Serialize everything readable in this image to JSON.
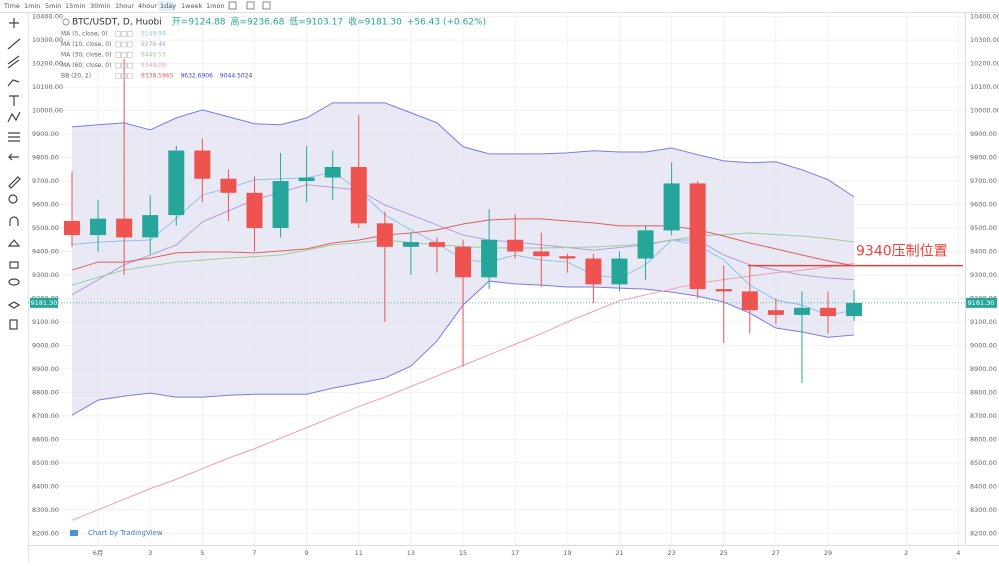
{
  "toolbar": {
    "intervals": [
      "Time",
      "1min",
      "5min",
      "15min",
      "30min",
      "1hour",
      "4hour",
      "1day",
      "1week",
      "1mon"
    ],
    "active": 7
  },
  "chart_data": {
    "type": "candlestick",
    "title": "BTC/USDT, D, Huobi",
    "ohlc_labels": [
      "开=",
      "高=",
      "低=",
      "收="
    ],
    "price_label": "9181.30",
    "change": "+56.43 (+0.62%)",
    "watermark": "Chart by TradingView",
    "categories": [
      null,
      "6月",
      null,
      "3",
      null,
      "5",
      null,
      "7",
      null,
      "9",
      null,
      "11",
      null,
      "13",
      null,
      "15",
      null,
      "17",
      null,
      "19",
      null,
      "21",
      null,
      "23",
      null,
      "25",
      null,
      "27",
      null,
      "29",
      null,
      null,
      "2",
      null,
      "4"
    ],
    "open": [
      9530,
      9470,
      9540,
      9460,
      9555,
      9830,
      9710,
      9650,
      9500,
      9700,
      9715,
      9760,
      9520,
      9420,
      9440,
      9420,
      9290,
      9450,
      9400,
      9380,
      9370,
      9260,
      9370,
      9490,
      9690,
      9240,
      9230,
      9150,
      9130,
      9160,
      9124.88,
      null,
      null,
      null,
      null
    ],
    "high": [
      9740,
      9620,
      10220,
      9640,
      9850,
      9880,
      9750,
      9720,
      9820,
      9850,
      9830,
      9980,
      9570,
      9480,
      9460,
      9450,
      9580,
      9560,
      9480,
      9390,
      9390,
      9400,
      9510,
      9780,
      9700,
      9340,
      9340,
      9200,
      9230,
      9230,
      9236.68,
      null,
      null,
      null,
      null
    ],
    "low": [
      9420,
      9400,
      9300,
      9390,
      9510,
      9610,
      9530,
      9400,
      9460,
      9610,
      9620,
      9500,
      9100,
      9300,
      9310,
      8910,
      9240,
      9370,
      9250,
      9310,
      9180,
      9230,
      9280,
      9470,
      9200,
      9010,
      9050,
      9090,
      8840,
      9050,
      9103.17,
      null,
      null,
      null,
      null
    ],
    "close": [
      9470,
      9540,
      9460,
      9555,
      9830,
      9710,
      9650,
      9500,
      9700,
      9715,
      9760,
      9520,
      9420,
      9440,
      9420,
      9290,
      9450,
      9400,
      9380,
      9370,
      9260,
      9370,
      9490,
      9690,
      9240,
      9230,
      9150,
      9130,
      9160,
      9125,
      9181.3,
      null,
      null,
      null,
      null
    ],
    "up_color": "#26a69a",
    "down_color": "#ef5350",
    "series": [
      {
        "name": "MA (5, close, 0)",
        "color": "#8fc3e6",
        "values": [
          9430,
          9440,
          9445,
          9449,
          9540,
          9641,
          9670,
          9705,
          9710,
          9713,
          9739,
          9662,
          9556,
          9492,
          9436,
          9364,
          9355,
          9385,
          9364,
          9355,
          9300,
          9287,
          9343,
          9449,
          9428,
          9364,
          9257,
          9193,
          9172,
          9129,
          9149.99,
          null,
          null,
          null,
          null
        ]
      },
      {
        "name": "MA (10, close, 0)",
        "color": "#b39ddb",
        "values": [
          9215,
          9280,
          9343,
          9385,
          9428,
          9526,
          9573,
          9620,
          9652,
          9684,
          9673,
          9662,
          9598,
          9556,
          9513,
          9470,
          9449,
          9440,
          9428,
          9417,
          9406,
          9417,
          9428,
          9449,
          9449,
          9385,
          9343,
          9321,
          9300,
          9287,
          9279.46,
          null,
          null,
          null,
          null
        ]
      },
      {
        "name": "MA (30, close, 0)",
        "color": "#9ccc9c",
        "values": [
          9257,
          9290,
          9321,
          9338,
          9355,
          9364,
          9372,
          9378,
          9385,
          9406,
          9428,
          9438,
          9449,
          9438,
          9428,
          9422,
          9415,
          9415,
          9415,
          9417,
          9419,
          9425,
          9432,
          9449,
          9466,
          9472,
          9479,
          9472,
          9466,
          9455,
          9440.53,
          null,
          null,
          null,
          null
        ]
      },
      {
        "name": "MA (60, close, 0)",
        "color": "#f19bb4",
        "values": [
          8255,
          8300,
          8345,
          8390,
          8430,
          8475,
          8520,
          8560,
          8605,
          8650,
          8695,
          8740,
          8780,
          8825,
          8870,
          8915,
          8960,
          9005,
          9050,
          9100,
          9145,
          9190,
          9215,
          9240,
          9265,
          9280,
          9295,
          9310,
          9320,
          9335,
          9349.09,
          null,
          null,
          null,
          null
        ]
      }
    ],
    "bands": {
      "name": "BB (20, 2)",
      "middle_color": "#e35d5d",
      "band_color": "#7b7be0",
      "fill": "#e4e4f3",
      "middle": [
        9321,
        9355,
        9355,
        9372,
        9394,
        9398,
        9398,
        9394,
        9402,
        9411,
        9436,
        9449,
        9470,
        9479,
        9492,
        9517,
        9534,
        9539,
        9539,
        9530,
        9522,
        9509,
        9509,
        9509,
        9492,
        9466,
        9436,
        9411,
        9385,
        9360,
        9338.5965,
        null,
        null,
        null,
        null
      ],
      "upper": [
        9931,
        9940,
        9948,
        9918,
        9969,
        10003,
        9974,
        9944,
        9940,
        9969,
        10033,
        10033,
        10033,
        9991,
        9948,
        9846,
        9816,
        9816,
        9816,
        9820,
        9829,
        9824,
        9824,
        9841,
        9812,
        9786,
        9778,
        9782,
        9748,
        9706,
        9632.6906,
        null,
        null,
        null,
        null
      ],
      "lower": [
        8703,
        8767,
        8784,
        8797,
        8780,
        8780,
        8788,
        8792,
        8792,
        8792,
        8818,
        8839,
        8861,
        8912,
        9019,
        9172,
        9274,
        9262,
        9257,
        9249,
        9249,
        9244,
        9240,
        9227,
        9210,
        9185,
        9138,
        9074,
        9057,
        9035,
        9044.5024,
        null,
        null,
        null,
        null
      ]
    },
    "annotation": {
      "text": "9340压制位置",
      "value": 9340,
      "color": "#e8413c"
    },
    "ylim": [
      8150,
      10420
    ],
    "yticks": [
      {
        "value": 8200,
        "label": "8200.00"
      },
      {
        "value": 8300,
        "label": "8300.00"
      },
      {
        "value": 8400,
        "label": "8400.00"
      },
      {
        "value": 8500,
        "label": "8500.00"
      },
      {
        "value": 8600,
        "label": "8600.00"
      },
      {
        "value": 8700,
        "label": "8700.00"
      },
      {
        "value": 8800,
        "label": "8800.00"
      },
      {
        "value": 8900,
        "label": "8900.00"
      },
      {
        "value": 9000,
        "label": "9000.00"
      },
      {
        "value": 9100,
        "label": "9100.00"
      },
      {
        "value": 9200,
        "label": "9200.00"
      },
      {
        "value": 9300,
        "label": "9300.00"
      },
      {
        "value": 9400,
        "label": "9400.00"
      },
      {
        "value": 9500,
        "label": "9500.00"
      },
      {
        "value": 9600,
        "label": "9600.00"
      },
      {
        "value": 9700,
        "label": "9700.00"
      },
      {
        "value": 9800,
        "label": "9800.00"
      },
      {
        "value": 9900,
        "label": "9900.00"
      },
      {
        "value": 10000,
        "label": "10000.00"
      },
      {
        "value": 10100,
        "label": "10100.00"
      },
      {
        "value": 10200,
        "label": "10200.00"
      },
      {
        "value": 10300,
        "label": "10300.00"
      },
      {
        "value": 10400,
        "label": "10400.00"
      }
    ],
    "grid": true
  }
}
